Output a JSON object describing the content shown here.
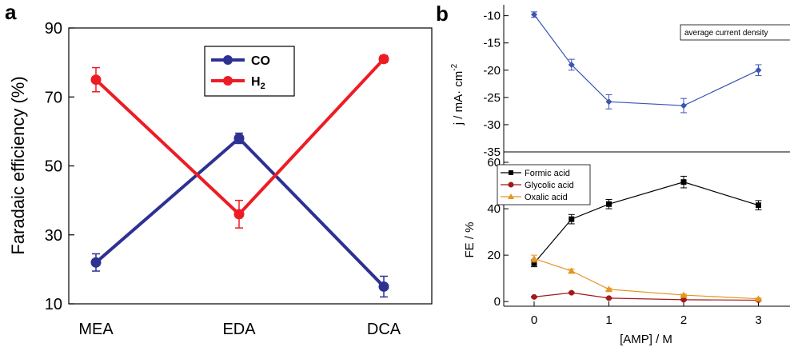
{
  "panel_labels": {
    "a": "a",
    "b": "b"
  },
  "chart_data": [
    {
      "panel": "a",
      "type": "line",
      "categories": [
        "MEA",
        "EDA",
        "DCA"
      ],
      "xlabel": "",
      "ylabel": "Faradaic efficiency (%)",
      "ylim": [
        10,
        90
      ],
      "yticks": [
        10,
        30,
        50,
        70,
        90
      ],
      "legend_position": "top-center",
      "grid": false,
      "series": [
        {
          "name": "CO",
          "color": "#2e3192",
          "values": [
            22,
            58,
            15
          ],
          "errors": [
            2.5,
            1.5,
            3
          ]
        },
        {
          "name": "H",
          "name_sub": "2",
          "color": "#ed1c24",
          "values": [
            75,
            36,
            81
          ],
          "errors": [
            3.5,
            4,
            1
          ]
        }
      ]
    },
    {
      "panel": "b-top",
      "type": "line",
      "x": [
        0,
        0.5,
        1,
        2,
        3
      ],
      "ylabel": "j / mA· cm",
      "ylabel_sup": "-2",
      "ylim": [
        -35,
        -8
      ],
      "yticks": [
        -35,
        -30,
        -25,
        -20,
        -15,
        -10
      ],
      "annotation": "average current density",
      "grid": false,
      "series": [
        {
          "name": "average current density",
          "color": "#3a55b4",
          "values": [
            -9.8,
            -19,
            -25.8,
            -26.5,
            -20
          ],
          "errors": [
            0.5,
            1,
            1.3,
            1.3,
            1
          ]
        }
      ]
    },
    {
      "panel": "b-bottom",
      "type": "line",
      "x": [
        0,
        0.5,
        1,
        2,
        3
      ],
      "xlabel": "[AMP] / M",
      "xticks": [
        0,
        1,
        2,
        3
      ],
      "xlim": [
        -0.4,
        3.4
      ],
      "ylabel": "FE / %",
      "ylim": [
        -2,
        60
      ],
      "yticks": [
        0,
        20,
        40,
        60
      ],
      "legend_position": "top-left",
      "grid": false,
      "series": [
        {
          "name": "Formic acid",
          "color": "#000000",
          "marker": "square",
          "values": [
            16.5,
            35.5,
            42,
            51.5,
            41.5
          ],
          "errors": [
            1.5,
            2,
            2,
            2.5,
            2
          ]
        },
        {
          "name": "Glycolic acid",
          "color": "#a01a1a",
          "marker": "circle",
          "values": [
            2,
            3.8,
            1.5,
            0.8,
            0.6
          ],
          "errors": [
            0.3,
            0.3,
            0.3,
            0.3,
            0.3
          ]
        },
        {
          "name": "Oxalic acid",
          "color": "#e69420",
          "marker": "triangle",
          "values": [
            18.5,
            13.2,
            5.3,
            2.8,
            1.2
          ],
          "errors": [
            1.5,
            0.8,
            0.5,
            0.4,
            0.3
          ]
        }
      ]
    }
  ]
}
